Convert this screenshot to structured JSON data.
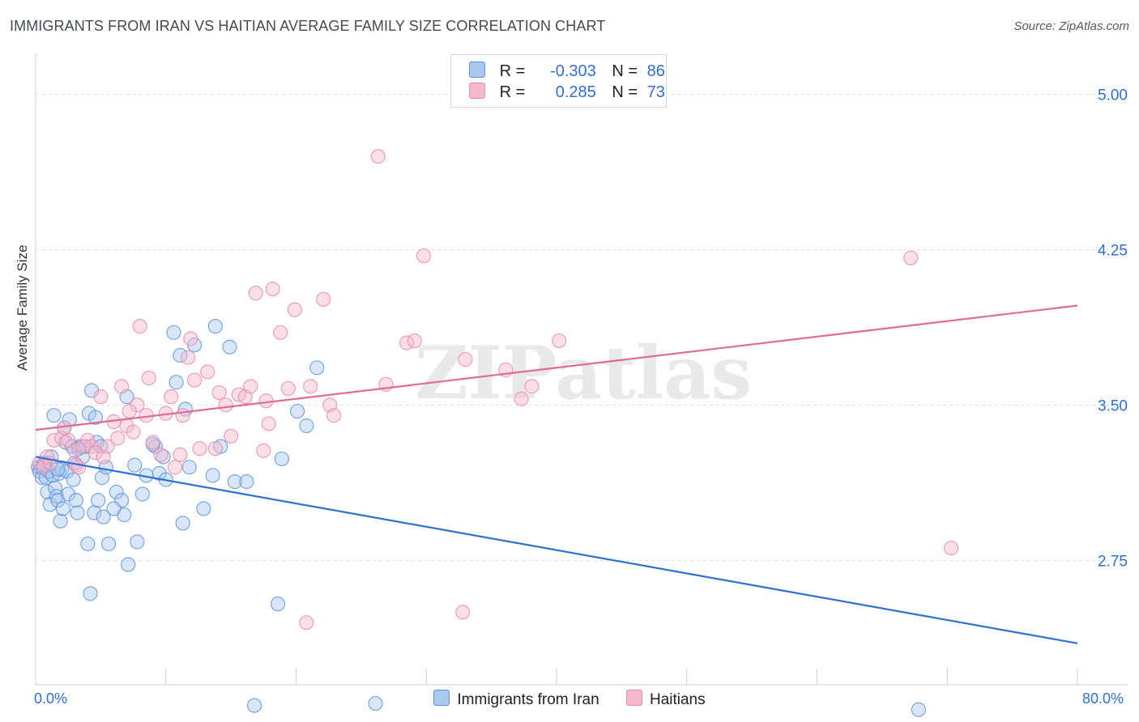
{
  "header": {
    "title": "IMMIGRANTS FROM IRAN VS HAITIAN AVERAGE FAMILY SIZE CORRELATION CHART",
    "source": "Source: ZipAtlas.com"
  },
  "legend": {
    "rows": [
      {
        "r_label": "R =",
        "r_value": "-0.303",
        "n_label": "N =",
        "n_value": "86"
      },
      {
        "r_label": "R =",
        "r_value": "0.285",
        "n_label": "N =",
        "n_value": "73"
      }
    ]
  },
  "bottom_legend": {
    "items": [
      "Immigrants from Iran",
      "Haitians"
    ]
  },
  "watermark": "ZIPatlas",
  "colors": {
    "blue_fill": "#a8c8f0",
    "blue_stroke": "#5b93dc",
    "blue_line": "#2d72d2",
    "pink_fill": "#f6b8cc",
    "pink_stroke": "#e88aa8",
    "pink_line": "#e06b94",
    "tick_label": "#2f6fd0",
    "grid": "#e4e4e4"
  },
  "chart_data": {
    "type": "scatter",
    "title": "IMMIGRANTS FROM IRAN VS HAITIAN AVERAGE FAMILY SIZE CORRELATION CHART",
    "xlabel": "",
    "ylabel": "Average Family Size",
    "xlim": [
      0,
      80
    ],
    "ylim": [
      2.15,
      5.15
    ],
    "x_tick_labels": [
      "0.0%",
      "80.0%"
    ],
    "y_ticks": [
      2.75,
      3.5,
      4.25,
      5.0
    ],
    "y_tick_labels": [
      "2.75",
      "3.50",
      "4.25",
      "5.00"
    ],
    "grid": true,
    "legend_position": "top-center",
    "series": [
      {
        "name": "Immigrants from Iran",
        "color": "#a8c8f0",
        "trend": {
          "x": [
            0,
            80
          ],
          "y": [
            3.25,
            2.35
          ]
        },
        "points": [
          [
            0.2,
            3.2
          ],
          [
            0.3,
            3.18
          ],
          [
            0.4,
            3.2
          ],
          [
            0.5,
            3.15
          ],
          [
            0.6,
            3.2
          ],
          [
            0.7,
            3.22
          ],
          [
            0.8,
            3.15
          ],
          [
            0.9,
            3.08
          ],
          [
            1.0,
            3.18
          ],
          [
            1.1,
            3.02
          ],
          [
            1.2,
            3.25
          ],
          [
            1.3,
            3.16
          ],
          [
            1.4,
            3.45
          ],
          [
            1.5,
            3.1
          ],
          [
            1.6,
            3.06
          ],
          [
            1.7,
            3.04
          ],
          [
            1.8,
            3.17
          ],
          [
            1.9,
            2.94
          ],
          [
            2.0,
            3.19
          ],
          [
            2.1,
            3.0
          ],
          [
            2.2,
            3.39
          ],
          [
            2.3,
            3.32
          ],
          [
            2.4,
            3.18
          ],
          [
            2.5,
            3.07
          ],
          [
            2.6,
            3.43
          ],
          [
            2.8,
            3.3
          ],
          [
            2.9,
            3.14
          ],
          [
            3.0,
            3.22
          ],
          [
            3.1,
            3.04
          ],
          [
            3.2,
            2.98
          ],
          [
            3.4,
            3.3
          ],
          [
            3.6,
            3.25
          ],
          [
            3.8,
            3.3
          ],
          [
            4.0,
            2.83
          ],
          [
            4.1,
            3.46
          ],
          [
            4.2,
            2.59
          ],
          [
            4.3,
            3.57
          ],
          [
            4.5,
            2.98
          ],
          [
            4.6,
            3.44
          ],
          [
            4.7,
            3.32
          ],
          [
            4.8,
            3.04
          ],
          [
            5.0,
            3.3
          ],
          [
            5.1,
            3.15
          ],
          [
            5.2,
            2.96
          ],
          [
            5.4,
            3.2
          ],
          [
            5.6,
            2.83
          ],
          [
            6.2,
            3.08
          ],
          [
            6.6,
            3.04
          ],
          [
            6.8,
            2.97
          ],
          [
            7.0,
            3.54
          ],
          [
            7.1,
            2.73
          ],
          [
            7.6,
            3.21
          ],
          [
            7.8,
            2.84
          ],
          [
            8.2,
            3.07
          ],
          [
            8.5,
            3.16
          ],
          [
            9.2,
            3.3
          ],
          [
            9.5,
            3.17
          ],
          [
            9.8,
            3.25
          ],
          [
            10.0,
            3.14
          ],
          [
            10.6,
            3.85
          ],
          [
            10.8,
            3.61
          ],
          [
            11.1,
            3.74
          ],
          [
            11.3,
            2.93
          ],
          [
            11.5,
            3.48
          ],
          [
            12.2,
            3.79
          ],
          [
            12.9,
            3.0
          ],
          [
            13.6,
            3.16
          ],
          [
            13.8,
            3.88
          ],
          [
            14.2,
            3.3
          ],
          [
            14.9,
            3.78
          ],
          [
            15.3,
            3.13
          ],
          [
            16.2,
            3.13
          ],
          [
            16.8,
            2.05
          ],
          [
            18.6,
            2.54
          ],
          [
            18.9,
            3.24
          ],
          [
            20.1,
            3.47
          ],
          [
            20.8,
            3.4
          ],
          [
            21.6,
            3.68
          ],
          [
            26.1,
            2.06
          ],
          [
            67.8,
            2.03
          ],
          [
            0.6,
            3.21
          ],
          [
            1.7,
            3.19
          ],
          [
            3.3,
            3.29
          ],
          [
            6.0,
            3.0
          ],
          [
            11.8,
            3.2
          ],
          [
            9.0,
            3.31
          ]
        ]
      },
      {
        "name": "Haitians",
        "color": "#f6b8cc",
        "trend": {
          "x": [
            0,
            80
          ],
          "y": [
            3.38,
            3.98
          ]
        },
        "points": [
          [
            0.3,
            3.22
          ],
          [
            0.6,
            3.2
          ],
          [
            0.9,
            3.25
          ],
          [
            1.1,
            3.22
          ],
          [
            1.4,
            3.33
          ],
          [
            2.0,
            3.34
          ],
          [
            2.2,
            3.39
          ],
          [
            2.5,
            3.33
          ],
          [
            3.0,
            3.28
          ],
          [
            3.1,
            3.21
          ],
          [
            3.3,
            3.2
          ],
          [
            3.6,
            3.3
          ],
          [
            4.0,
            3.33
          ],
          [
            4.3,
            3.3
          ],
          [
            4.6,
            3.27
          ],
          [
            5.0,
            3.54
          ],
          [
            5.2,
            3.25
          ],
          [
            5.5,
            3.3
          ],
          [
            6.0,
            3.42
          ],
          [
            6.3,
            3.34
          ],
          [
            6.6,
            3.59
          ],
          [
            7.0,
            3.4
          ],
          [
            7.5,
            3.37
          ],
          [
            7.8,
            3.5
          ],
          [
            8.0,
            3.88
          ],
          [
            8.5,
            3.45
          ],
          [
            8.7,
            3.63
          ],
          [
            9.0,
            3.32
          ],
          [
            9.6,
            3.26
          ],
          [
            10.0,
            3.46
          ],
          [
            10.4,
            3.54
          ],
          [
            10.7,
            3.2
          ],
          [
            11.1,
            3.26
          ],
          [
            11.3,
            3.45
          ],
          [
            11.7,
            3.73
          ],
          [
            11.9,
            3.82
          ],
          [
            12.2,
            3.62
          ],
          [
            12.6,
            3.29
          ],
          [
            13.2,
            3.66
          ],
          [
            13.8,
            3.29
          ],
          [
            14.1,
            3.56
          ],
          [
            14.6,
            3.5
          ],
          [
            15.0,
            3.35
          ],
          [
            15.6,
            3.55
          ],
          [
            16.1,
            3.54
          ],
          [
            16.5,
            3.59
          ],
          [
            16.9,
            4.04
          ],
          [
            17.5,
            3.28
          ],
          [
            17.7,
            3.52
          ],
          [
            17.9,
            3.41
          ],
          [
            18.2,
            4.06
          ],
          [
            18.8,
            3.85
          ],
          [
            19.4,
            3.58
          ],
          [
            19.9,
            3.96
          ],
          [
            21.1,
            3.59
          ],
          [
            22.1,
            4.01
          ],
          [
            22.6,
            3.5
          ],
          [
            22.9,
            3.45
          ],
          [
            26.3,
            4.7
          ],
          [
            26.9,
            3.6
          ],
          [
            28.5,
            3.8
          ],
          [
            29.1,
            3.81
          ],
          [
            29.8,
            4.22
          ],
          [
            32.8,
            2.5
          ],
          [
            33.0,
            3.72
          ],
          [
            36.1,
            3.67
          ],
          [
            37.3,
            3.53
          ],
          [
            38.1,
            3.59
          ],
          [
            40.2,
            3.81
          ],
          [
            67.2,
            4.21
          ],
          [
            70.3,
            2.81
          ],
          [
            20.8,
            2.45
          ],
          [
            7.2,
            3.47
          ]
        ]
      }
    ]
  }
}
